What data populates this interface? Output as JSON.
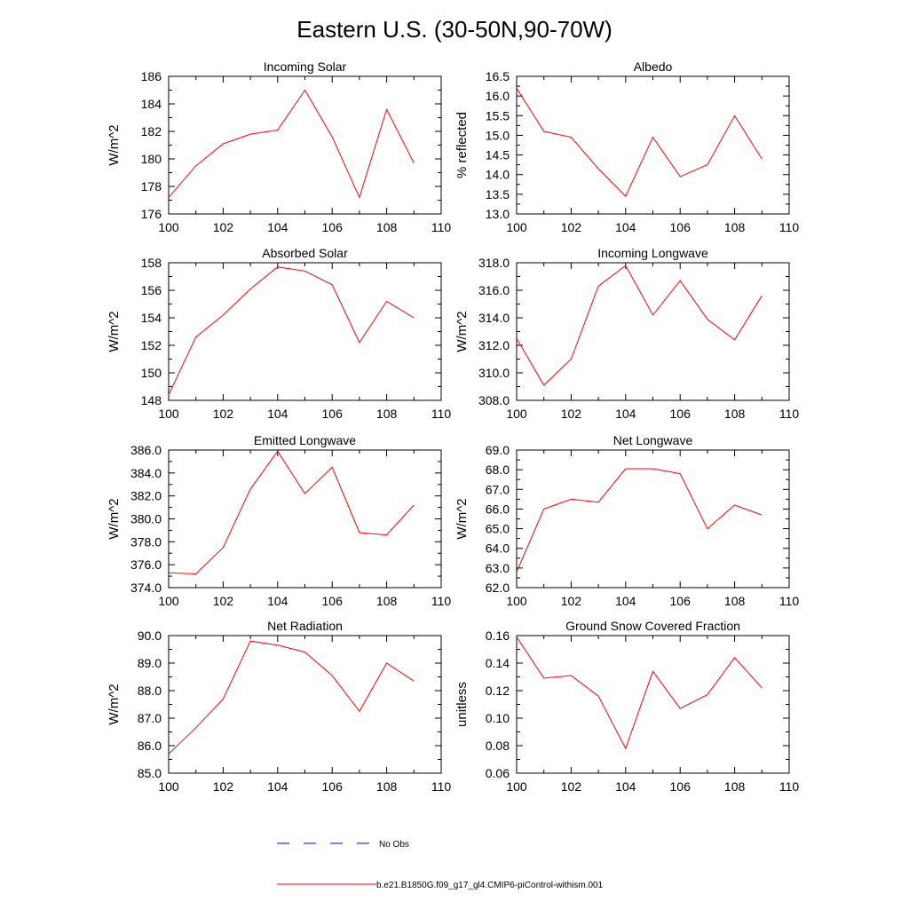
{
  "title": "Eastern U.S. (30-50N,90-70W)",
  "legend": {
    "obs_label": "No Obs",
    "model_label": "b.e21.B1850G.f09_g17_gl4.CMIP6-piControl-withism.001",
    "obs_color": "#0000ff",
    "model_color": "#ff0000"
  },
  "chart_data": [
    {
      "type": "line",
      "title": "Incoming Solar",
      "ylabel": "W/m^2",
      "xlim": [
        100,
        110
      ],
      "ylim": [
        176,
        186
      ],
      "xticks": [
        "100",
        "102",
        "104",
        "106",
        "108",
        "110"
      ],
      "yticks": [
        "176",
        "178",
        "180",
        "182",
        "184",
        "186"
      ],
      "x": [
        100,
        101,
        102,
        103,
        104,
        105,
        106,
        107,
        108,
        109
      ],
      "series": [
        {
          "values": [
            177.2,
            179.5,
            181.1,
            181.8,
            182.1,
            185.0,
            181.6,
            177.2,
            183.6,
            179.7
          ]
        }
      ]
    },
    {
      "type": "line",
      "title": "Albedo",
      "ylabel": "% reflected",
      "xlim": [
        100,
        110
      ],
      "ylim": [
        13.0,
        16.5
      ],
      "xticks": [
        "100",
        "102",
        "104",
        "106",
        "108",
        "110"
      ],
      "yticks": [
        "13.0",
        "13.5",
        "14.0",
        "14.5",
        "15.0",
        "15.5",
        "16.0",
        "16.5"
      ],
      "x": [
        100,
        101,
        102,
        103,
        104,
        105,
        106,
        107,
        108,
        109
      ],
      "series": [
        {
          "values": [
            16.2,
            15.1,
            14.95,
            14.15,
            13.45,
            14.95,
            13.95,
            14.25,
            15.5,
            14.4
          ]
        }
      ]
    },
    {
      "type": "line",
      "title": "Absorbed Solar",
      "ylabel": "W/m^2",
      "xlim": [
        100,
        110
      ],
      "ylim": [
        148,
        158
      ],
      "xticks": [
        "100",
        "102",
        "104",
        "106",
        "108",
        "110"
      ],
      "yticks": [
        "148",
        "150",
        "152",
        "154",
        "156",
        "158"
      ],
      "x": [
        100,
        101,
        102,
        103,
        104,
        105,
        106,
        107,
        108,
        109
      ],
      "series": [
        {
          "values": [
            148.4,
            152.6,
            154.2,
            156.1,
            157.7,
            157.4,
            156.4,
            152.2,
            155.2,
            154.0
          ]
        }
      ]
    },
    {
      "type": "line",
      "title": "Incoming Longwave",
      "ylabel": "W/m^2",
      "xlim": [
        100,
        110
      ],
      "ylim": [
        308.0,
        318.0
      ],
      "xticks": [
        "100",
        "102",
        "104",
        "106",
        "108",
        "110"
      ],
      "yticks": [
        "308.0",
        "310.0",
        "312.0",
        "314.0",
        "316.0",
        "318.0"
      ],
      "x": [
        100,
        101,
        102,
        103,
        104,
        105,
        106,
        107,
        108,
        109
      ],
      "series": [
        {
          "values": [
            312.5,
            309.1,
            311.0,
            316.3,
            317.8,
            314.2,
            316.7,
            313.9,
            312.4,
            315.6
          ]
        }
      ]
    },
    {
      "type": "line",
      "title": "Emitted Longwave",
      "ylabel": "W/m^2",
      "xlim": [
        100,
        110
      ],
      "ylim": [
        374.0,
        386.0
      ],
      "xticks": [
        "100",
        "102",
        "104",
        "106",
        "108",
        "110"
      ],
      "yticks": [
        "374.0",
        "376.0",
        "378.0",
        "380.0",
        "382.0",
        "384.0",
        "386.0"
      ],
      "x": [
        100,
        101,
        102,
        103,
        104,
        105,
        106,
        107,
        108,
        109
      ],
      "series": [
        {
          "values": [
            375.3,
            375.2,
            377.5,
            382.6,
            385.9,
            382.2,
            384.5,
            378.8,
            378.6,
            381.2
          ]
        }
      ]
    },
    {
      "type": "line",
      "title": "Net Longwave",
      "ylabel": "W/m^2",
      "xlim": [
        100,
        110
      ],
      "ylim": [
        62.0,
        69.0
      ],
      "xticks": [
        "100",
        "102",
        "104",
        "106",
        "108",
        "110"
      ],
      "yticks": [
        "62.0",
        "63.0",
        "64.0",
        "65.0",
        "66.0",
        "67.0",
        "68.0",
        "69.0"
      ],
      "x": [
        100,
        101,
        102,
        103,
        104,
        105,
        106,
        107,
        108,
        109
      ],
      "series": [
        {
          "values": [
            62.8,
            66.0,
            66.5,
            66.35,
            68.05,
            68.05,
            67.8,
            65.0,
            66.2,
            65.7
          ]
        }
      ]
    },
    {
      "type": "line",
      "title": "Net Radiation",
      "ylabel": "W/m^2",
      "xlim": [
        100,
        110
      ],
      "ylim": [
        85.0,
        90.0
      ],
      "xticks": [
        "100",
        "102",
        "104",
        "106",
        "108",
        "110"
      ],
      "yticks": [
        "85.0",
        "86.0",
        "87.0",
        "88.0",
        "89.0",
        "90.0"
      ],
      "x": [
        100,
        101,
        102,
        103,
        104,
        105,
        106,
        107,
        108,
        109
      ],
      "series": [
        {
          "values": [
            85.7,
            86.65,
            87.7,
            89.8,
            89.65,
            89.4,
            88.55,
            87.25,
            89.0,
            88.35
          ]
        }
      ]
    },
    {
      "type": "line",
      "title": "Ground Snow Covered Fraction",
      "ylabel": "unitless",
      "xlim": [
        100,
        110
      ],
      "ylim": [
        0.06,
        0.16
      ],
      "xticks": [
        "100",
        "102",
        "104",
        "106",
        "108",
        "110"
      ],
      "yticks": [
        "0.06",
        "0.08",
        "0.10",
        "0.12",
        "0.14",
        "0.16"
      ],
      "x": [
        100,
        101,
        102,
        103,
        104,
        105,
        106,
        107,
        108,
        109
      ],
      "series": [
        {
          "values": [
            0.159,
            0.129,
            0.131,
            0.116,
            0.078,
            0.134,
            0.107,
            0.117,
            0.144,
            0.122
          ]
        }
      ]
    }
  ]
}
